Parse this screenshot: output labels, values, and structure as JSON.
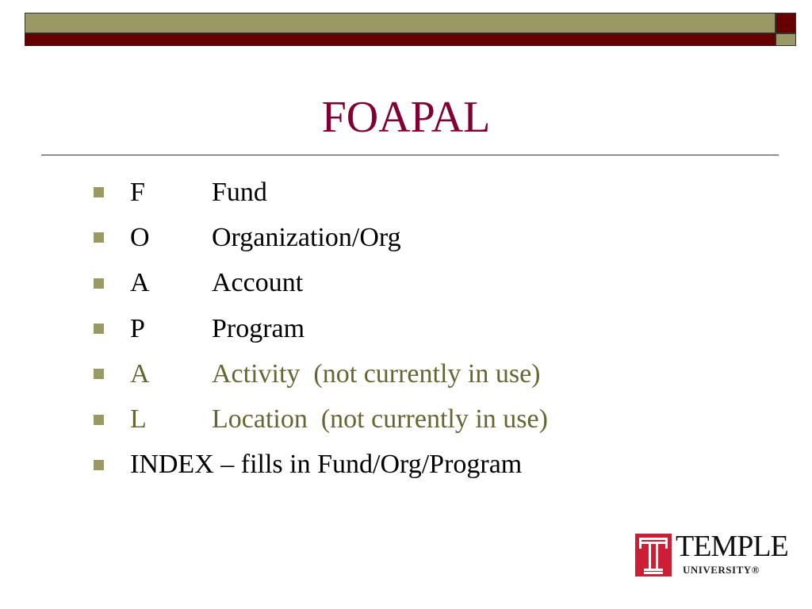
{
  "slide": {
    "title": "FOAPAL",
    "items": [
      {
        "letter": "F",
        "text": "Fund",
        "dimmed": false
      },
      {
        "letter": "O",
        "text": "Organization/Org",
        "dimmed": false
      },
      {
        "letter": "A",
        "text": "Account",
        "dimmed": false
      },
      {
        "letter": "P",
        "text": "Program",
        "dimmed": false
      },
      {
        "letter": "A",
        "text": "Activity  (not currently in use)",
        "dimmed": true
      },
      {
        "letter": "L",
        "text": "Location  (not currently in use)",
        "dimmed": true
      }
    ],
    "last_item": "INDEX – fills in Fund/Org/Program"
  },
  "logo": {
    "name": "TEMPLE",
    "sub": "UNIVERSITY®"
  },
  "colors": {
    "olive": "#999966",
    "maroon": "#660000",
    "title": "#800033",
    "dimmed_text": "#666633",
    "logo_red": "#cc1f36"
  }
}
